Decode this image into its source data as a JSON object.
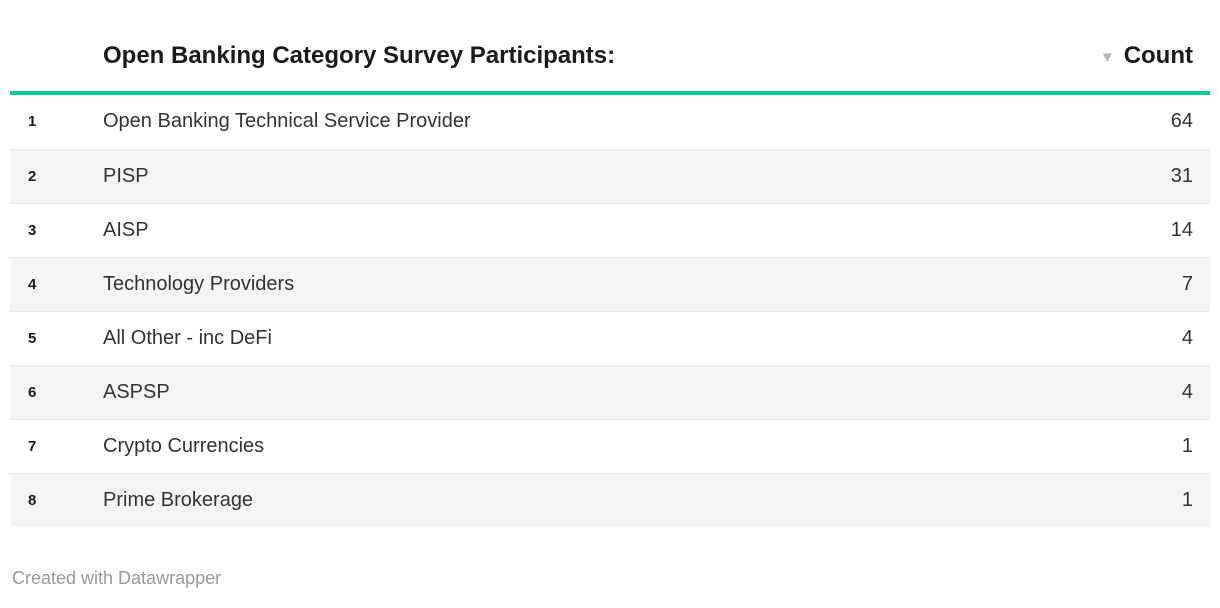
{
  "table": {
    "title": "Open Banking Category Survey Participants:",
    "count_header": "Count",
    "sort_icon": "▼",
    "rows": [
      {
        "rank": "1",
        "category": "Open Banking Technical Service Provider",
        "count": "64"
      },
      {
        "rank": "2",
        "category": "PISP",
        "count": "31"
      },
      {
        "rank": "3",
        "category": "AISP",
        "count": "14"
      },
      {
        "rank": "4",
        "category": "Technology Providers",
        "count": "7"
      },
      {
        "rank": "5",
        "category": "All Other - inc DeFi",
        "count": "4"
      },
      {
        "rank": "6",
        "category": "ASPSP",
        "count": "4"
      },
      {
        "rank": "7",
        "category": "Crypto Currencies",
        "count": "1"
      },
      {
        "rank": "8",
        "category": "Prime Brokerage",
        "count": "1"
      }
    ]
  },
  "footer": {
    "attribution": "Created with Datawrapper"
  },
  "colors": {
    "accent": "#0ecb94",
    "stripe": "#f5f5f5",
    "row_border": "#e9e9e9",
    "text": "#333333",
    "title_text": "#1a1a1a",
    "muted_text": "#9a9a9a",
    "sort_arrow": "#b8b8b8"
  },
  "chart_data": {
    "type": "table",
    "title": "Open Banking Category Survey Participants:",
    "columns": [
      "#",
      "Category",
      "Count"
    ],
    "categories": [
      "Open Banking Technical Service Provider",
      "PISP",
      "AISP",
      "Technology Providers",
      "All Other - inc DeFi",
      "ASPSP",
      "Crypto Currencies",
      "Prime Brokerage"
    ],
    "values": [
      64,
      31,
      14,
      7,
      4,
      4,
      1,
      1
    ],
    "sort": {
      "column": "Count",
      "direction": "descending"
    },
    "striped_rows": true,
    "attribution": "Created with Datawrapper"
  }
}
